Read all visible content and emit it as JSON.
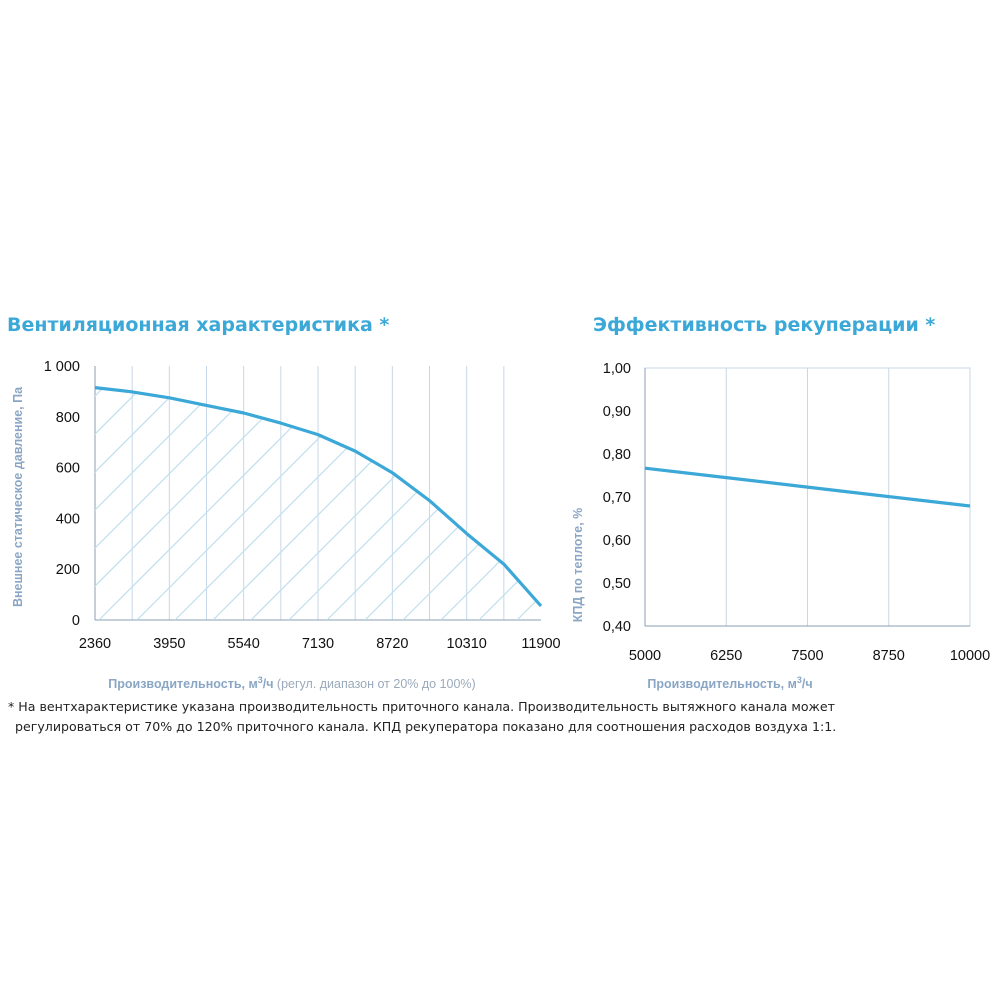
{
  "charts": {
    "left_title": "Вентиляционная характеристика *",
    "right_title": "Эффективность рекуперации *"
  },
  "chart_data": [
    {
      "type": "area",
      "title": "Вентиляционная характеристика *",
      "ylabel": "Внешнее статическое давление, Па",
      "xlabel_main": "Производительность, м",
      "xlabel_unit_sup": "3",
      "xlabel_unit_tail": "/ч",
      "xlabel_note": " (регул. диапазон от 20% до 100%)",
      "x_tick_labels": [
        "2360",
        "3950",
        "5540",
        "7130",
        "8720",
        "10310",
        "11900"
      ],
      "y_tick_labels": [
        "0",
        "200",
        "400",
        "600",
        "800",
        "1 000"
      ],
      "xlim": [
        2360,
        11900
      ],
      "ylim": [
        0,
        1000
      ],
      "grid": true,
      "hatched_area": true,
      "color": "#3ba8d8",
      "series": [
        {
          "x": [
            2360,
            3155,
            3950,
            4745,
            5540,
            6335,
            7130,
            7925,
            8720,
            9515,
            10310,
            11105,
            11900
          ],
          "y": [
            915,
            898,
            875,
            845,
            815,
            775,
            730,
            665,
            580,
            470,
            340,
            220,
            55
          ]
        }
      ]
    },
    {
      "type": "line",
      "title": "Эффективность рекуперации *",
      "ylabel": "КПД по теплоте, %",
      "xlabel_main": "Производительность, м",
      "xlabel_unit_sup": "3",
      "xlabel_unit_tail": "/ч",
      "x_tick_labels": [
        "5000",
        "6250",
        "7500",
        "8750",
        "10000"
      ],
      "y_tick_labels": [
        "0,40",
        "0,50",
        "0,60",
        "0,70",
        "0,80",
        "0,90",
        "1,00"
      ],
      "xlim": [
        5000,
        10000
      ],
      "ylim": [
        0.4,
        1.0
      ],
      "grid": true,
      "color": "#3ba8d8",
      "series": [
        {
          "x": [
            5000,
            6250,
            7500,
            8750,
            10000
          ],
          "y": [
            0.767,
            0.745,
            0.723,
            0.701,
            0.679
          ]
        }
      ]
    }
  ],
  "footnote": {
    "line1": "* На вентхарактеристике указана производительность приточного канала. Производительность вытяжного канала может",
    "line2": "регулироваться от 70% до 120% приточного канала. КПД рекуператора показано для соотношения расходов воздуха 1:1."
  }
}
